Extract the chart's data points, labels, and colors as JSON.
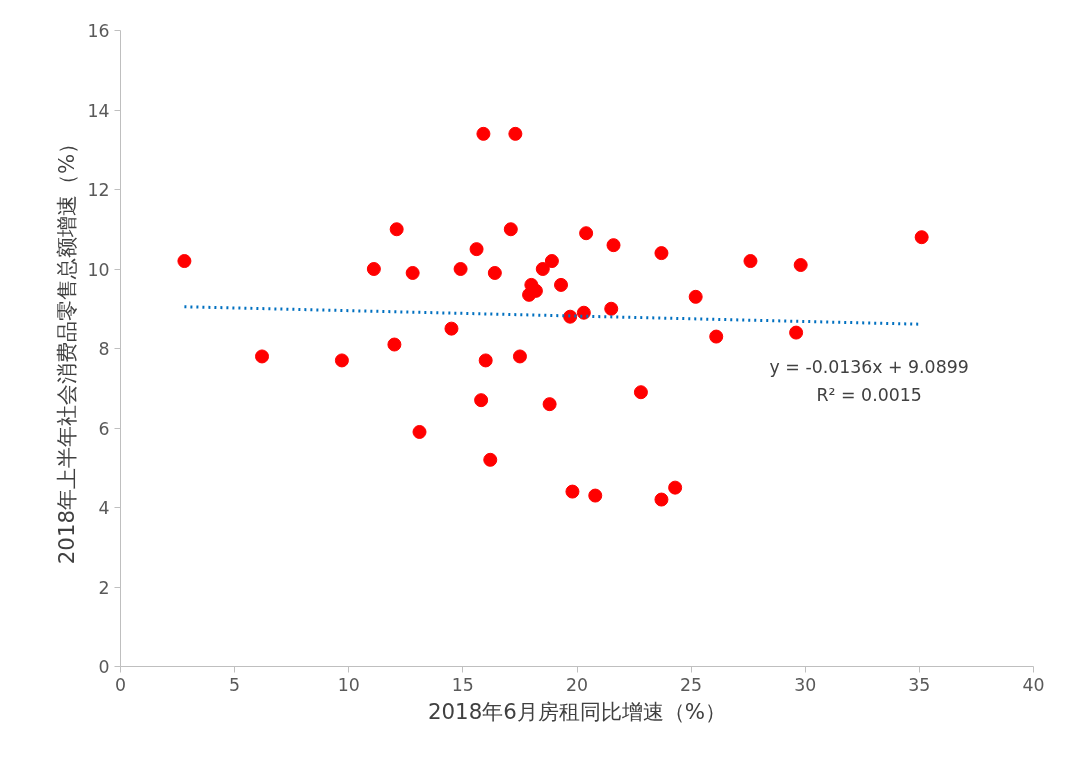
{
  "chart_data": {
    "type": "scatter",
    "xlabel": "2018年6月房租同比增速（%）",
    "ylabel": "2018年上半年社会消费品零售总额增速（%）",
    "xlim": [
      0,
      40
    ],
    "xticks": [
      0,
      5,
      10,
      15,
      20,
      25,
      30,
      35,
      40
    ],
    "ylim": [
      0,
      16
    ],
    "yticks": [
      0,
      2,
      4,
      6,
      8,
      10,
      12,
      14,
      16
    ],
    "grid": false,
    "annotations": [
      "y = -0.0136x + 9.0899",
      "R² = 0.0015"
    ],
    "series": [
      {
        "color": "#ff0000",
        "marker": "circle",
        "x": [
          2.8,
          6.2,
          9.7,
          11.1,
          12.0,
          12.1,
          12.8,
          13.1,
          14.5,
          14.9,
          15.6,
          15.8,
          15.9,
          16.0,
          16.2,
          16.4,
          17.1,
          17.3,
          17.5,
          17.9,
          18.0,
          18.2,
          18.5,
          18.8,
          18.9,
          19.3,
          19.7,
          19.8,
          20.3,
          20.4,
          20.8,
          21.5,
          21.6,
          22.8,
          23.7,
          23.7,
          24.3,
          25.2,
          26.1,
          27.6,
          29.6,
          29.8,
          35.1
        ],
        "values": [
          10.2,
          7.8,
          7.7,
          10.0,
          8.1,
          11.0,
          9.9,
          5.9,
          8.5,
          10.0,
          10.5,
          6.7,
          13.4,
          7.7,
          5.2,
          9.9,
          11.0,
          13.4,
          7.8,
          9.35,
          9.6,
          9.45,
          10.0,
          6.6,
          10.2,
          9.6,
          8.8,
          4.4,
          8.9,
          10.9,
          4.3,
          9.0,
          10.6,
          6.9,
          10.4,
          4.2,
          4.5,
          9.3,
          8.3,
          10.2,
          8.4,
          10.1,
          10.8
        ]
      },
      {
        "type": "line",
        "color": "#0070c0",
        "line_style": "dotted",
        "x": [
          2.8,
          35.1
        ],
        "values": [
          9.05,
          8.61
        ]
      }
    ]
  }
}
